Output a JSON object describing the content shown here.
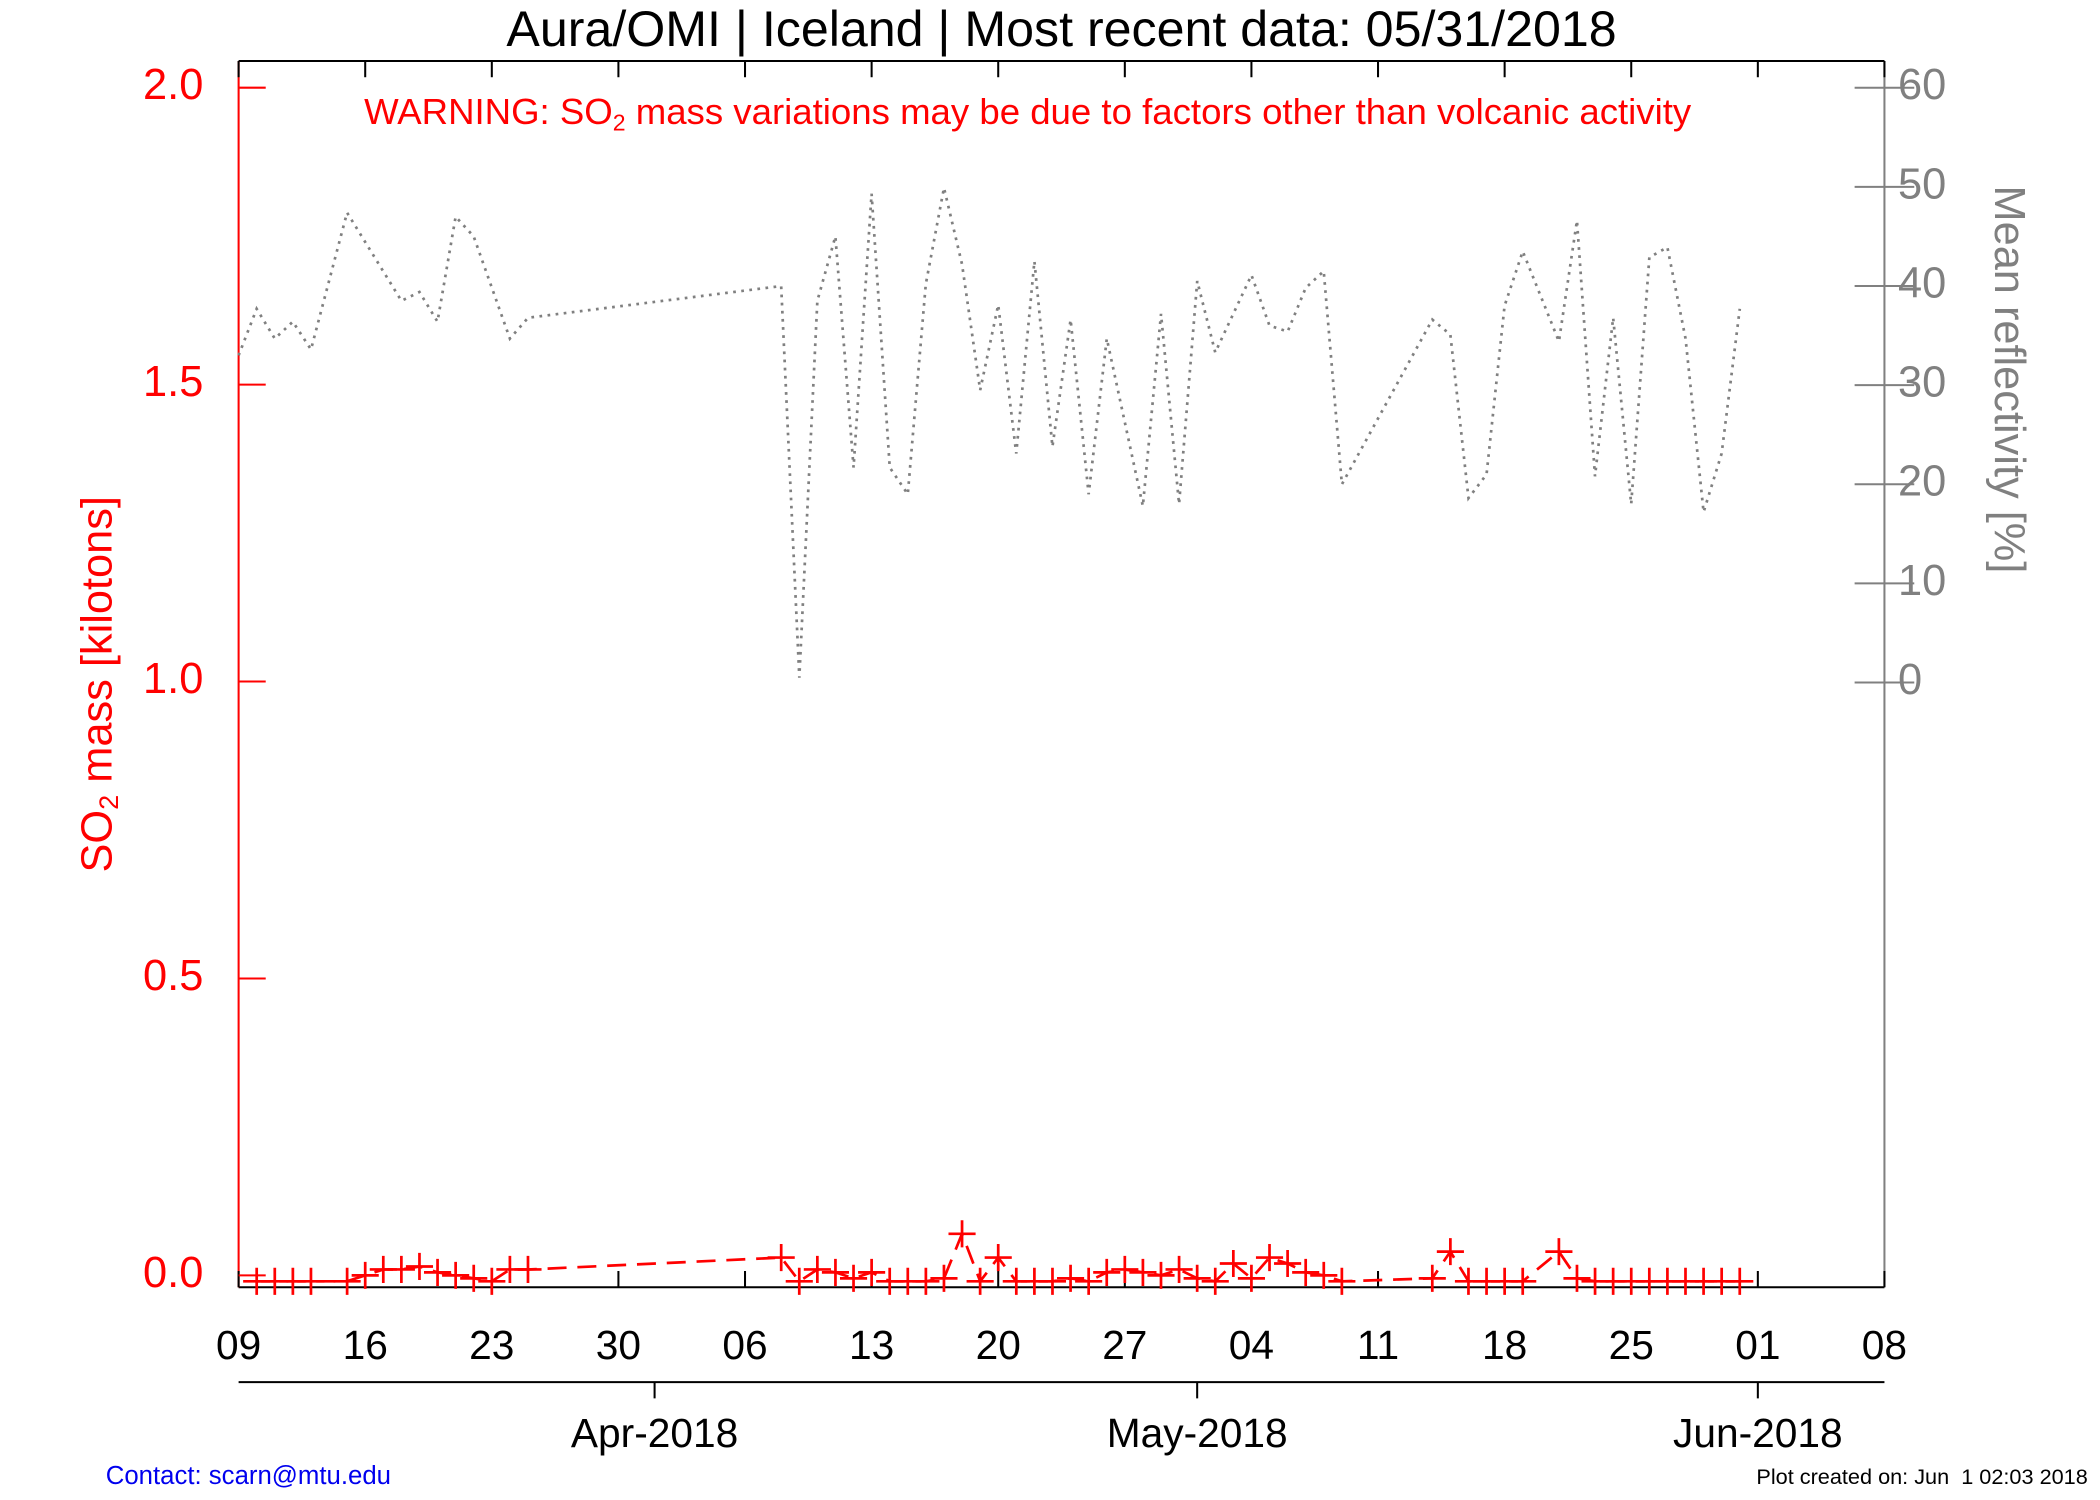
{
  "chart_data": {
    "type": "line",
    "title": "Aura/OMI | Iceland | Most recent data: 05/31/2018",
    "warning": {
      "prefix": "WARNING: SO",
      "sub": "2",
      "suffix": " mass variations may be due to factors other than volcanic activity"
    },
    "ylabel": {
      "prefix": "SO",
      "sub": "2",
      "suffix": " mass [kilotons]"
    },
    "y2label": "Mean reflectivity [%]",
    "contact": "Contact: scarn@mtu.edu",
    "created": "Plot created on: Jun  1 02:03 2018",
    "xlim": [
      "2018-03-09",
      "2018-06-08"
    ],
    "xticks": [
      {
        "value": "2018-03-09",
        "label": "09"
      },
      {
        "value": "2018-03-16",
        "label": "16"
      },
      {
        "value": "2018-03-23",
        "label": "23"
      },
      {
        "value": "2018-03-30",
        "label": "30"
      },
      {
        "value": "2018-04-06",
        "label": "06"
      },
      {
        "value": "2018-04-13",
        "label": "13"
      },
      {
        "value": "2018-04-20",
        "label": "20"
      },
      {
        "value": "2018-04-27",
        "label": "27"
      },
      {
        "value": "2018-05-04",
        "label": "04"
      },
      {
        "value": "2018-05-11",
        "label": "11"
      },
      {
        "value": "2018-05-18",
        "label": "18"
      },
      {
        "value": "2018-05-25",
        "label": "25"
      },
      {
        "value": "2018-06-01",
        "label": "01"
      },
      {
        "value": "2018-06-08",
        "label": "08"
      }
    ],
    "month_ticks": [
      {
        "value": "2018-04-01",
        "label": "Apr-2018"
      },
      {
        "value": "2018-05-01",
        "label": "May-2018"
      },
      {
        "value": "2018-06-01",
        "label": "Jun-2018"
      }
    ],
    "ylim": [
      -0.02,
      2.045
    ],
    "yticks": [
      {
        "value": 0,
        "label": "0.0"
      },
      0.5,
      {
        "value": 1,
        "label": "1.0"
      },
      1.5,
      {
        "value": 2,
        "label": "2.0"
      }
    ],
    "y2lim": [
      -61,
      62.7
    ],
    "y2ticks": [
      0,
      10,
      20,
      30,
      40,
      50,
      60
    ],
    "series": [
      {
        "color": "#ff0000",
        "x": [
          "2018-03-10",
          "2018-03-11",
          "2018-03-12",
          "2018-03-13",
          "2018-03-15",
          "2018-03-16",
          "2018-03-17",
          "2018-03-18",
          "2018-03-19",
          "2018-03-20",
          "2018-03-21",
          "2018-03-22",
          "2018-03-23",
          "2018-03-24",
          "2018-03-25",
          "2018-04-08",
          "2018-04-09",
          "2018-04-10",
          "2018-04-11",
          "2018-04-12",
          "2018-04-13",
          "2018-04-14",
          "2018-04-15",
          "2018-04-16",
          "2018-04-17",
          "2018-04-18",
          "2018-04-19",
          "2018-04-20",
          "2018-04-21",
          "2018-04-22",
          "2018-04-23",
          "2018-04-24",
          "2018-04-25",
          "2018-04-26",
          "2018-04-27",
          "2018-04-28",
          "2018-04-29",
          "2018-04-30",
          "2018-05-01",
          "2018-05-02",
          "2018-05-03",
          "2018-05-04",
          "2018-05-05",
          "2018-05-06",
          "2018-05-07",
          "2018-05-08",
          "2018-05-09",
          "2018-05-14",
          "2018-05-15",
          "2018-05-16",
          "2018-05-17",
          "2018-05-18",
          "2018-05-19",
          "2018-05-21",
          "2018-05-22",
          "2018-05-23",
          "2018-05-24",
          "2018-05-25",
          "2018-05-26",
          "2018-05-27",
          "2018-05-28",
          "2018-05-29",
          "2018-05-30",
          "2018-05-31"
        ],
        "values": [
          -0.01,
          -0.01,
          -0.01,
          -0.01,
          -0.01,
          0.0,
          0.01,
          0.01,
          0.015,
          0.005,
          0.0,
          -0.005,
          -0.01,
          0.01,
          0.01,
          0.03,
          -0.01,
          0.01,
          0.005,
          -0.005,
          0.005,
          -0.01,
          -0.01,
          -0.01,
          -0.005,
          0.07,
          -0.01,
          0.03,
          -0.01,
          -0.01,
          -0.01,
          -0.005,
          -0.01,
          0.005,
          0.01,
          0.005,
          0.0,
          0.01,
          -0.005,
          -0.01,
          0.02,
          -0.005,
          0.03,
          0.02,
          0.005,
          0.0,
          -0.01,
          -0.005,
          0.04,
          -0.01,
          -0.01,
          -0.01,
          -0.01,
          0.04,
          -0.005,
          -0.01,
          -0.01,
          -0.01,
          -0.01,
          -0.01,
          -0.01,
          -0.01,
          -0.01,
          -0.01
        ]
      },
      {
        "color": "#808080",
        "axis": "y2",
        "x": [
          "2018-03-09",
          "2018-03-10",
          "2018-03-11",
          "2018-03-12",
          "2018-03-13",
          "2018-03-15",
          "2018-03-18",
          "2018-03-19",
          "2018-03-20",
          "2018-03-21",
          "2018-03-22",
          "2018-03-24",
          "2018-03-25",
          "2018-04-08",
          "2018-04-09",
          "2018-04-10",
          "2018-04-11",
          "2018-04-12",
          "2018-04-13",
          "2018-04-14",
          "2018-04-15",
          "2018-04-16",
          "2018-04-17",
          "2018-04-18",
          "2018-04-19",
          "2018-04-20",
          "2018-04-21",
          "2018-04-22",
          "2018-04-23",
          "2018-04-24",
          "2018-04-25",
          "2018-04-26",
          "2018-04-28",
          "2018-04-29",
          "2018-04-30",
          "2018-05-01",
          "2018-05-02",
          "2018-05-03",
          "2018-05-04",
          "2018-05-05",
          "2018-05-06",
          "2018-05-07",
          "2018-05-08",
          "2018-05-09",
          "2018-05-14",
          "2018-05-15",
          "2018-05-16",
          "2018-05-17",
          "2018-05-18",
          "2018-05-19",
          "2018-05-21",
          "2018-05-22",
          "2018-05-23",
          "2018-05-24",
          "2018-05-25",
          "2018-05-26",
          "2018-05-27",
          "2018-05-28",
          "2018-05-29",
          "2018-05-30",
          "2018-05-31"
        ],
        "values": [
          33,
          37.7,
          34.7,
          36.4,
          33.6,
          47.4,
          38.5,
          39.4,
          36.4,
          47,
          45,
          34.7,
          36.8,
          40,
          0.5,
          38.5,
          45,
          21.7,
          49.3,
          21.7,
          19,
          40.2,
          49.9,
          42.2,
          29.5,
          38.1,
          23.1,
          42.5,
          23.8,
          36.6,
          19,
          34.7,
          17.8,
          37.2,
          18,
          40.5,
          33.3,
          37.2,
          41.1,
          36,
          35.4,
          39.8,
          41.5,
          20,
          36.6,
          35.1,
          18.6,
          21,
          38,
          43.5,
          34.4,
          46.6,
          20.8,
          36.8,
          18,
          42.9,
          43.9,
          34.7,
          17.2,
          23.1,
          37.7
        ]
      }
    ]
  }
}
